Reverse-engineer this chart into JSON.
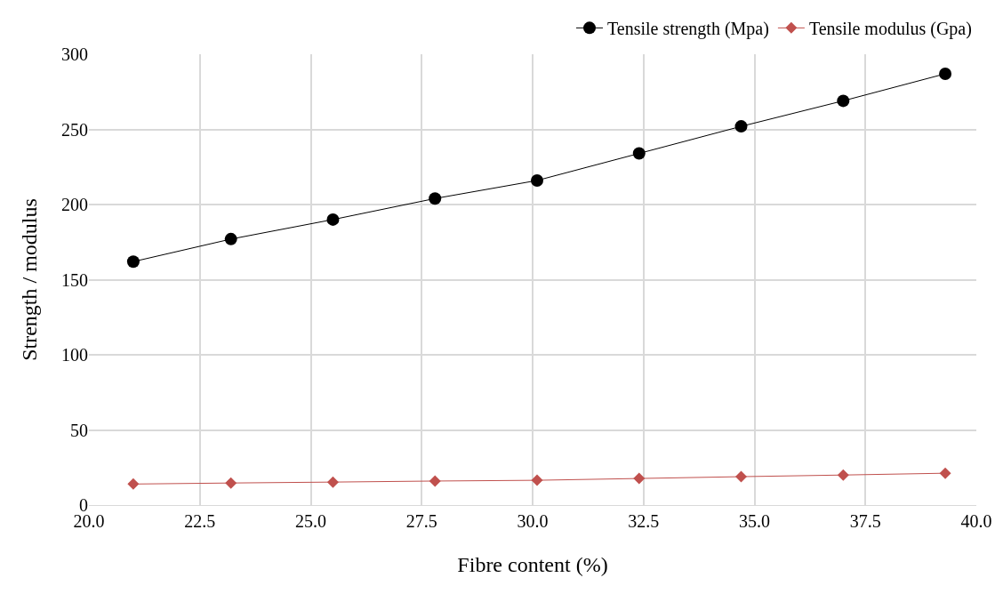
{
  "chart_data": {
    "type": "line",
    "xlabel": "Fibre content (%)",
    "ylabel": "Strength / modulus",
    "x": [
      21.0,
      23.2,
      25.5,
      27.8,
      30.1,
      32.4,
      34.7,
      37.0,
      39.3
    ],
    "series": [
      {
        "name": "Tensile strength (Mpa)",
        "color": "#000000",
        "marker": "circle",
        "values": [
          162,
          177,
          190,
          204,
          216,
          234,
          252,
          269,
          287
        ]
      },
      {
        "name": "Tensile modulus (Gpa)",
        "color": "#c0504d",
        "marker": "diamond",
        "values": [
          14,
          14.7,
          15.3,
          16,
          16.5,
          17.7,
          18.9,
          20,
          21.2
        ]
      }
    ],
    "xlim": [
      20,
      40
    ],
    "xticks": [
      {
        "value": 20,
        "label": "20.0"
      },
      {
        "value": 22.5,
        "label": "22.5"
      },
      {
        "value": 25,
        "label": "25.0"
      },
      {
        "value": 27.5,
        "label": "27.5"
      },
      {
        "value": 30,
        "label": "30.0"
      },
      {
        "value": 32.5,
        "label": "32.5"
      },
      {
        "value": 35,
        "label": "35.0"
      },
      {
        "value": 37.5,
        "label": "37.5"
      },
      {
        "value": 40,
        "label": "40.0"
      }
    ],
    "ylim": [
      0,
      300
    ],
    "yticks": [
      0,
      50,
      100,
      150,
      200,
      250,
      300
    ],
    "grid": true,
    "legend": "top right",
    "line_style": "solid"
  }
}
